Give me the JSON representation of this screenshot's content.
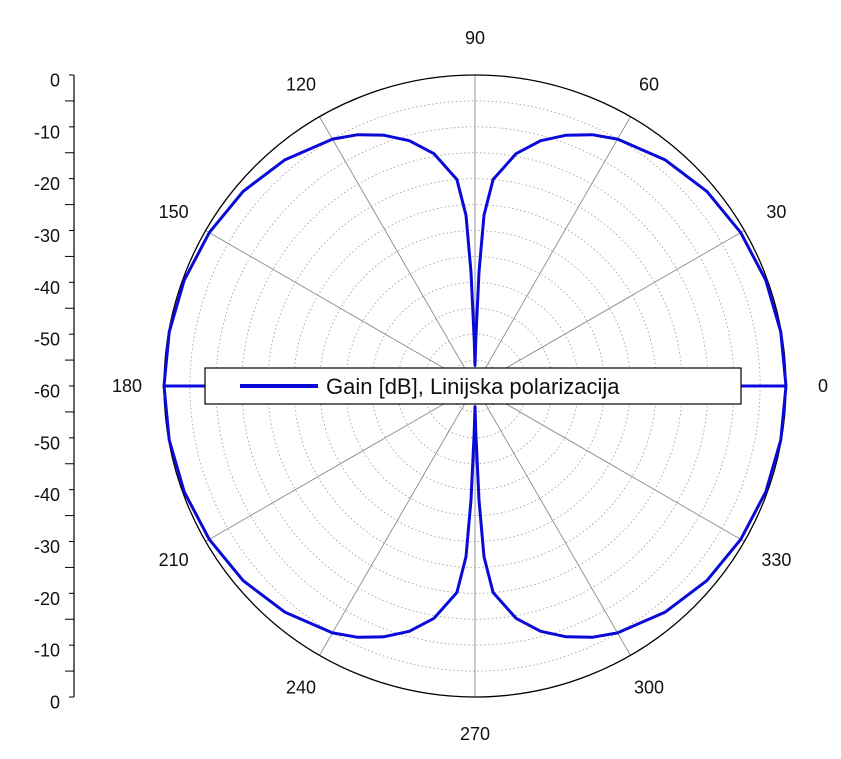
{
  "chart_data": {
    "type": "polar-line",
    "title": "",
    "radial_axis": {
      "unit": "dB",
      "min": -60,
      "max": 0,
      "tick_labels_upper": [
        "0",
        "-10",
        "-20",
        "-30",
        "-40",
        "-50"
      ],
      "center_label": "-60",
      "tick_labels_lower": [
        "-50",
        "-40",
        "-30",
        "-20",
        "-10",
        "0"
      ],
      "rings_every": 5
    },
    "angular_axis": {
      "labels": [
        "0",
        "30",
        "60",
        "90",
        "120",
        "150",
        "180",
        "210",
        "240",
        "270",
        "300",
        "330"
      ],
      "spokes_every_deg": 30
    },
    "grid": true,
    "legend": {
      "position": "center",
      "entries": [
        "Gain [dB], Linijska polarizacija"
      ]
    },
    "series": [
      {
        "name": "Gain [dB], Linijska polarizacija",
        "color": "#0a0ad8",
        "theta_deg": [
          0,
          10,
          20,
          30,
          40,
          50,
          60,
          65,
          70,
          75,
          80,
          85,
          87,
          88,
          89,
          90
        ],
        "r_db": [
          0.0,
          -0.1,
          -0.3,
          -0.8,
          -1.6,
          -3.0,
          -5.0,
          -6.5,
          -8.5,
          -11.0,
          -14.5,
          -20.0,
          -27.0,
          -38.0,
          -51.0,
          -56.0
        ]
      }
    ]
  }
}
